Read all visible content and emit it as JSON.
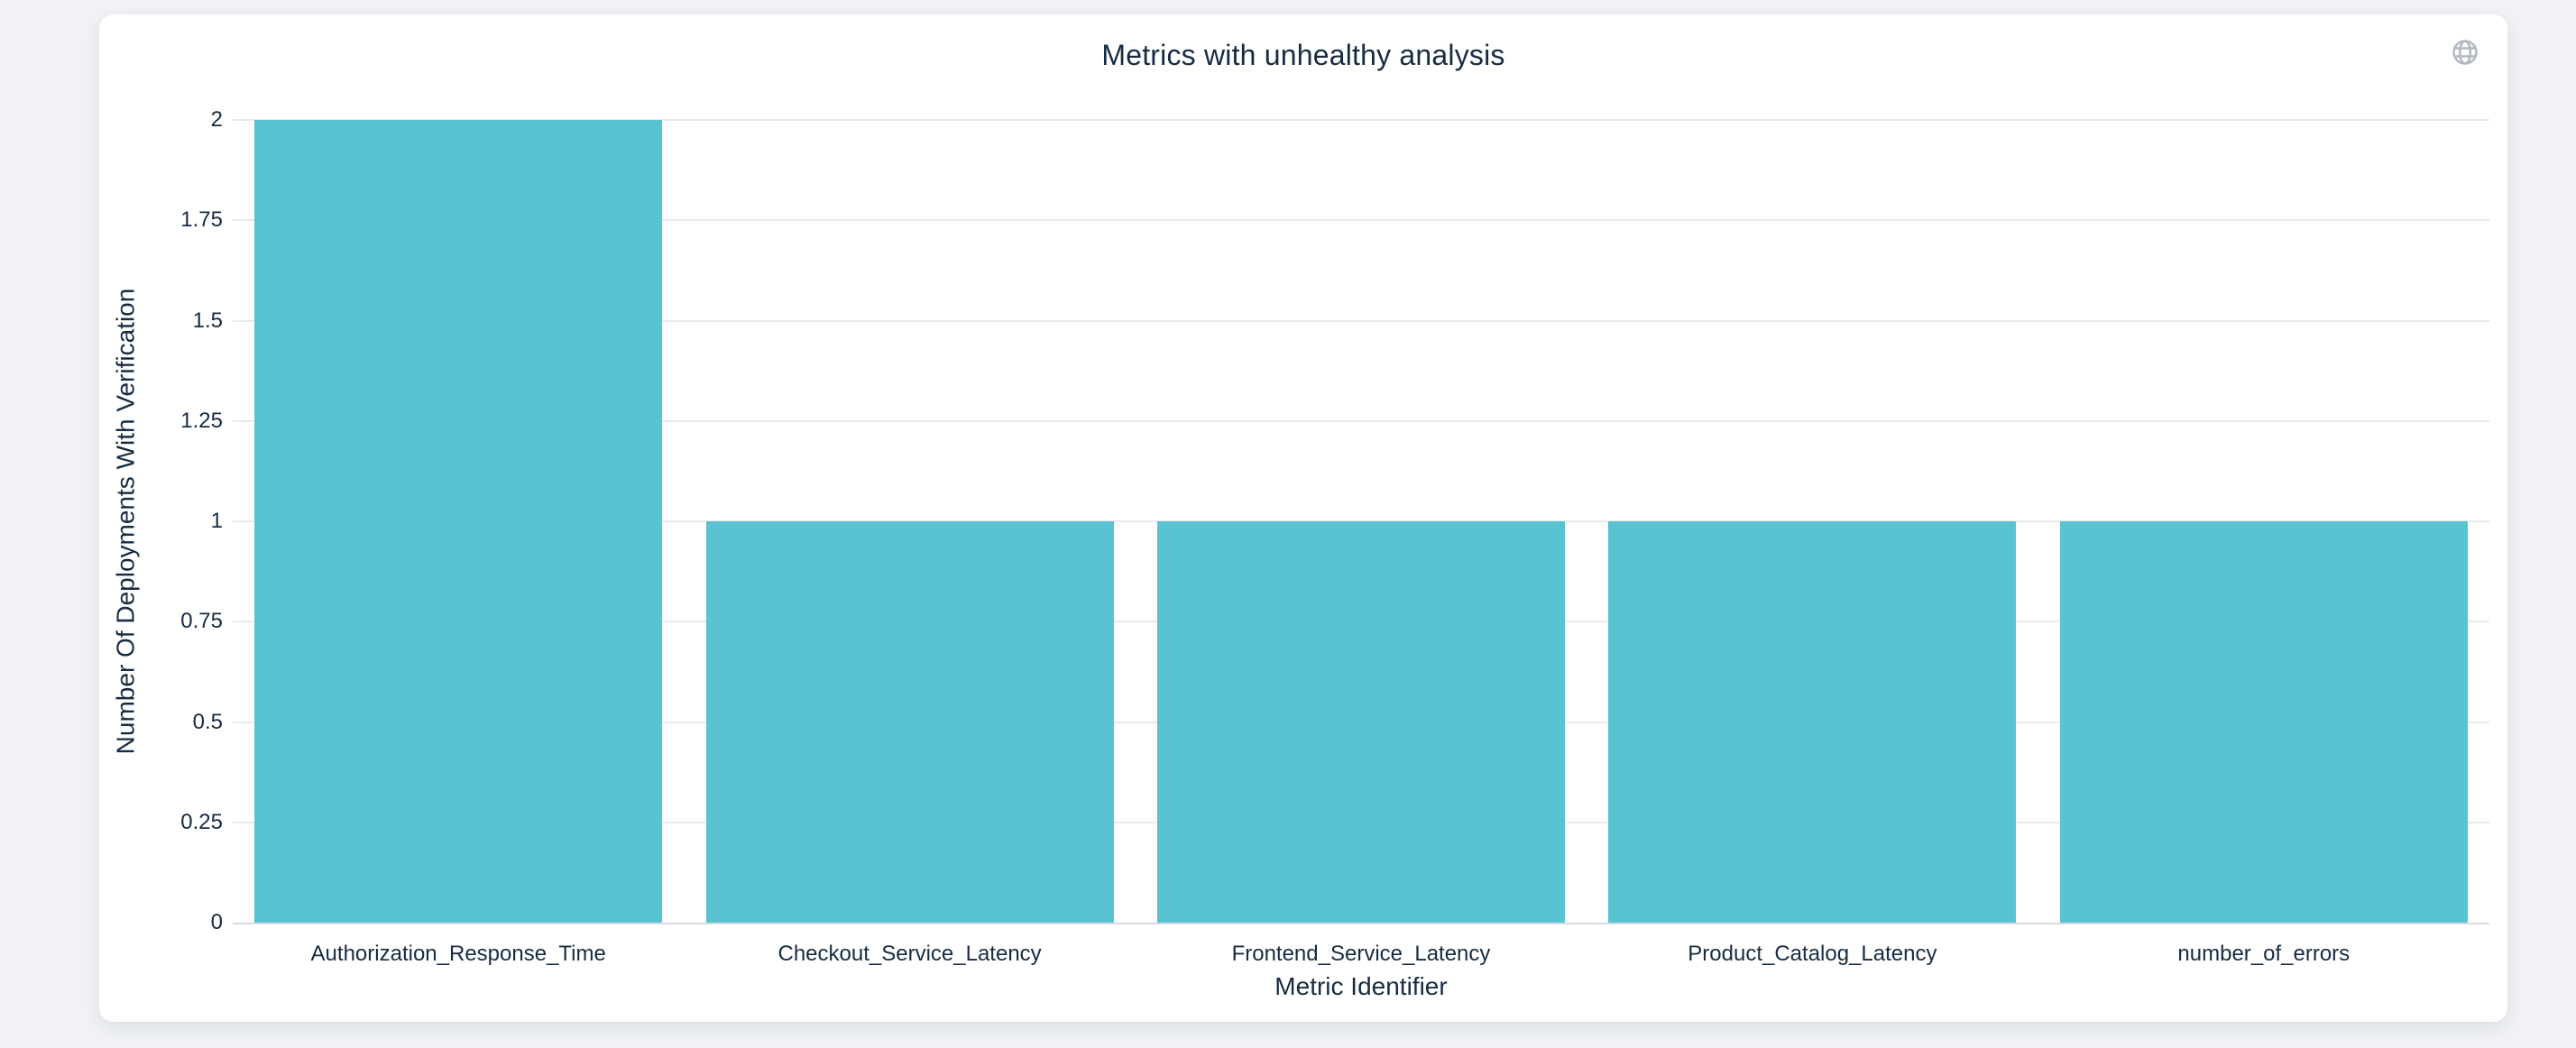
{
  "chart_data": {
    "type": "bar",
    "title": "Metrics with unhealthy analysis",
    "xlabel": "Metric Identifier",
    "ylabel": "Number Of Deployments With Verification",
    "categories": [
      "Authorization_Response_Time",
      "Checkout_Service_Latency",
      "Frontend_Service_Latency",
      "Product_Catalog_Latency",
      "number_of_errors"
    ],
    "values": [
      2,
      1,
      1,
      1,
      1
    ],
    "yticks": [
      0,
      0.25,
      0.5,
      0.75,
      1,
      1.25,
      1.5,
      1.75,
      2
    ],
    "ylim": [
      0,
      2
    ],
    "grid": true,
    "legend": false,
    "bar_color": "#59c3d2",
    "grid_color": "#e8eaee",
    "zero_line_color": "#d5dae3",
    "text_color": "#172b42"
  },
  "colors": {
    "page_background": "#f0f2f5",
    "card_background": "#ffffff",
    "icon_gray": "#b3b9c4"
  },
  "icons": {
    "top_right": "globe-icon"
  }
}
